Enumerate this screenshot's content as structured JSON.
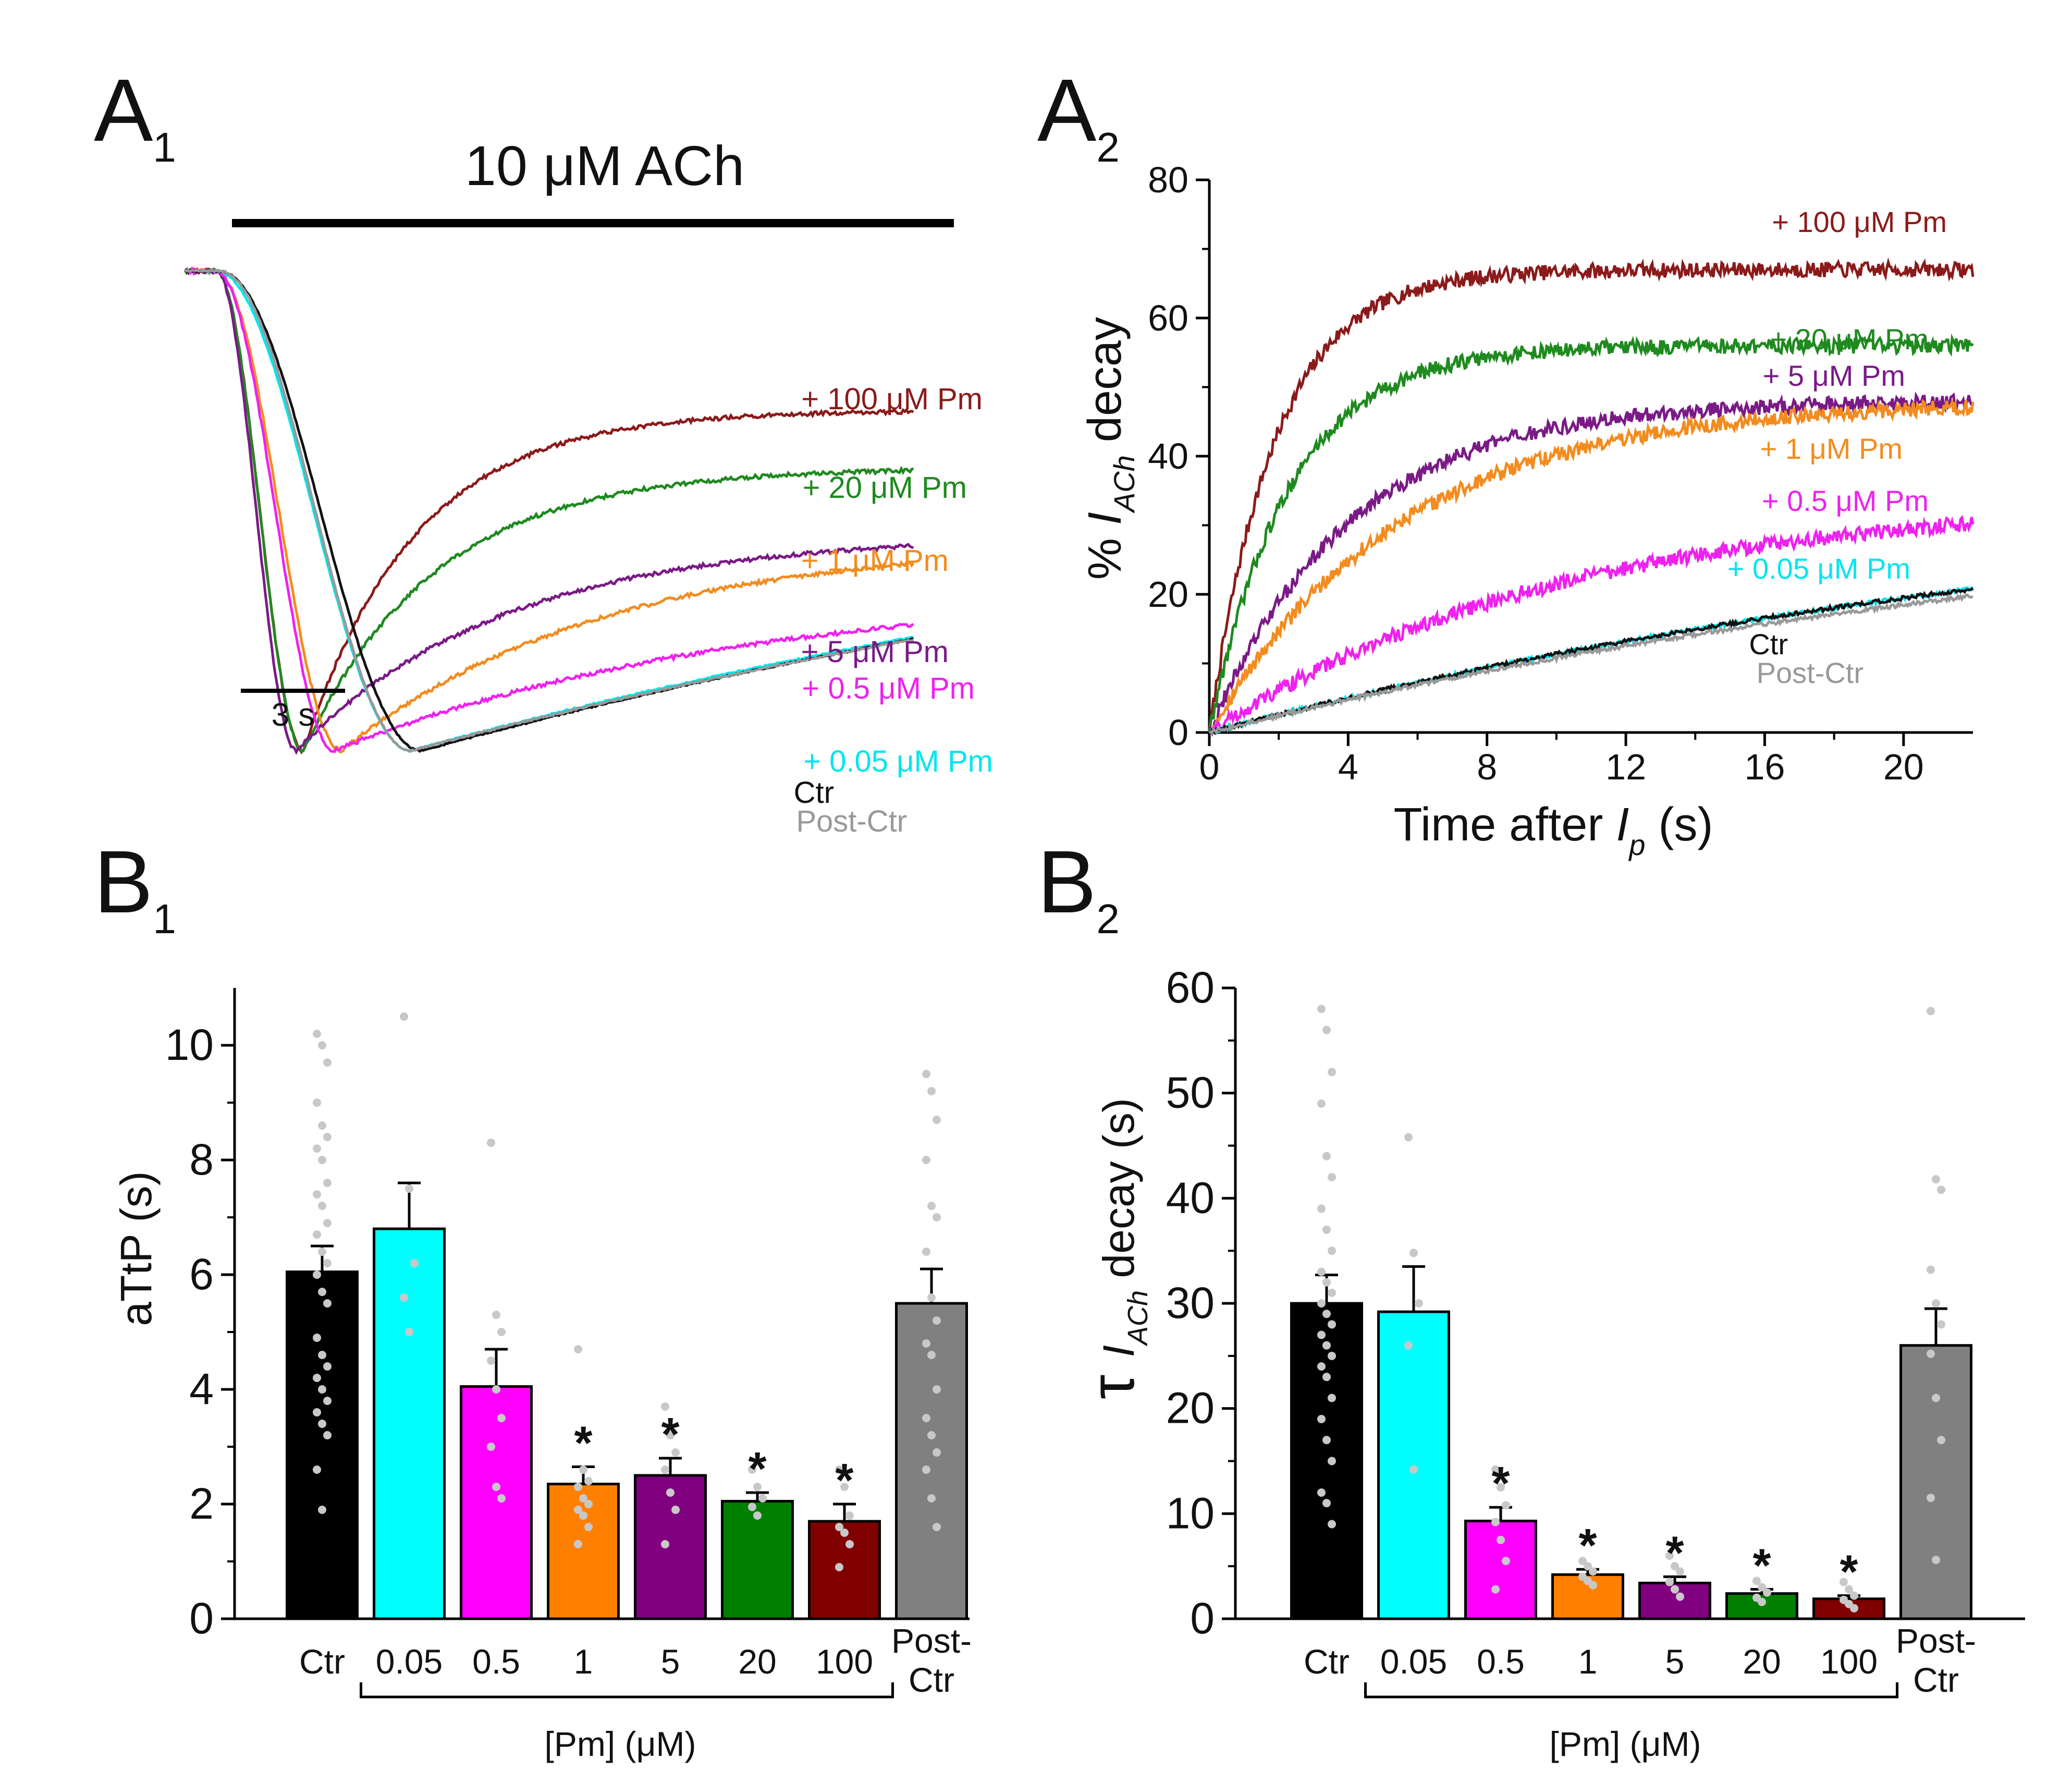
{
  "panels": {
    "a1": {
      "letter": "A",
      "sub": "1"
    },
    "a2": {
      "letter": "A",
      "sub": "2"
    },
    "b1": {
      "letter": "B",
      "sub": "1"
    },
    "b2": {
      "letter": "B",
      "sub": "2"
    }
  },
  "chart_data": [
    {
      "id": "A1",
      "type": "line",
      "title": "10 μM ACh",
      "scale_bar_label": "3 s",
      "series": [
        {
          "name": "+ 100 μM Pm",
          "color": "#8b1a1a",
          "onset": 0.9,
          "ttp": 3.4,
          "tau": 3.2,
          "ss": 0.71
        },
        {
          "name": "+ 20 μM Pm",
          "color": "#1f8a1f",
          "onset": 0.9,
          "ttp": 3.4,
          "tau": 3.8,
          "ss": 0.59
        },
        {
          "name": "+ 1 μM Pm",
          "color": "#f28c1f",
          "onset": 0.9,
          "ttp": 4.5,
          "tau": 7.5,
          "ss": 0.44
        },
        {
          "name": "+ 5 μM Pm",
          "color": "#7a1a86",
          "onset": 0.9,
          "ttp": 3.2,
          "tau": 6.0,
          "ss": 0.45
        },
        {
          "name": "+ 0.5 μM Pm",
          "color": "#ee22ee",
          "onset": 0.9,
          "ttp": 4.3,
          "tau": 12.0,
          "ss": 0.35
        },
        {
          "name": "+ 0.05 μM Pm",
          "color": "#00e5ee",
          "onset": 0.9,
          "ttp": 6.5,
          "tau": 35.0,
          "ss": 0.7
        },
        {
          "name": "Ctr",
          "color": "#111111",
          "onset": 1.0,
          "ttp": 6.8,
          "tau": 35.0,
          "ss": 0.7
        },
        {
          "name": "Post-Ctr",
          "color": "#999999",
          "onset": 1.0,
          "ttp": 6.5,
          "tau": 36.0,
          "ss": 0.7
        }
      ]
    },
    {
      "id": "A2",
      "type": "line",
      "xlabel": "Time after ",
      "xlabel_italic": "I",
      "xlabel_sub": "p",
      "xlabel_unit": " (s)",
      "ylabel_prefix": "% ",
      "ylabel_italic": "I",
      "ylabel_sub": "ACh",
      "ylabel_suffix": " decay",
      "xlim": [
        0,
        22
      ],
      "ylim": [
        0,
        80
      ],
      "xticks": [
        0,
        4,
        8,
        12,
        16,
        20
      ],
      "yticks": [
        0,
        20,
        40,
        60,
        80
      ],
      "series": [
        {
          "name": "+ 100 μM Pm",
          "color": "#8b1a1a",
          "amp": 67,
          "tau": 1.9
        },
        {
          "name": "+ 20 μM Pm",
          "color": "#1f8a1f",
          "amp": 56,
          "tau": 2.3
        },
        {
          "name": "+ 5 μM Pm",
          "color": "#7a1a86",
          "amp": 48,
          "tau": 4.0
        },
        {
          "name": "+ 1 μM Pm",
          "color": "#f28c1f",
          "amp": 48,
          "tau": 5.5
        },
        {
          "name": "+ 0.5 μM Pm",
          "color": "#ee22ee",
          "amp": 34,
          "tau": 10.0
        },
        {
          "name": "+ 0.05 μM Pm",
          "color": "#00e5ee",
          "amp": 40,
          "tau": 30.0
        },
        {
          "name": "Ctr",
          "color": "#111111",
          "amp": 40,
          "tau": 30.0
        },
        {
          "name": "Post-Ctr",
          "color": "#999999",
          "amp": 38,
          "tau": 30.0
        }
      ]
    },
    {
      "id": "B1",
      "type": "bar",
      "ylabel": "aTtP (s)",
      "ylim": [
        0,
        11
      ],
      "yticks": [
        0,
        2,
        4,
        6,
        8,
        10
      ],
      "categories": [
        "Ctr",
        "0.05",
        "0.5",
        "1",
        "5",
        "20",
        "100",
        "Post-"
      ],
      "category_line2": [
        "",
        "",
        "",
        "",
        "",
        "",
        "",
        "Ctr"
      ],
      "group_label": "[Pm] (μM)",
      "values": [
        6.05,
        6.8,
        4.05,
        2.35,
        2.5,
        2.05,
        1.7,
        5.5
      ],
      "sem": [
        0.45,
        0.8,
        0.65,
        0.3,
        0.3,
        0.15,
        0.3,
        0.6
      ],
      "significant": [
        false,
        false,
        false,
        true,
        true,
        true,
        true,
        false
      ],
      "star": "*",
      "colors": [
        "#000000",
        "#00ffff",
        "#ff00ff",
        "#ff8000",
        "#800080",
        "#008000",
        "#800000",
        "#808080"
      ],
      "points": [
        [
          10.2,
          10.0,
          9.7,
          9.0,
          8.6,
          8.4,
          8.2,
          8.0,
          7.6,
          7.4,
          7.2,
          6.9,
          6.7,
          6.4,
          6.2,
          6.0,
          5.7,
          5.5,
          4.9,
          4.6,
          4.4,
          4.2,
          4.0,
          3.8,
          3.6,
          3.4,
          3.2,
          2.6,
          1.9
        ],
        [
          10.5,
          7.5,
          6.2,
          5.6,
          5.0
        ],
        [
          8.3,
          5.3,
          5.0,
          4.5,
          4.0,
          3.5,
          3.0,
          2.3,
          2.1
        ],
        [
          4.7,
          2.6,
          2.4,
          2.3,
          2.1,
          2.0,
          1.9,
          1.8,
          1.6,
          1.3
        ],
        [
          3.7,
          3.2,
          2.9,
          2.6,
          2.2,
          1.9,
          1.3
        ],
        [
          2.6,
          2.3,
          2.1,
          1.95,
          1.8
        ],
        [
          2.6,
          2.3,
          1.8,
          1.6,
          1.5,
          1.3,
          0.9
        ],
        [
          9.5,
          9.2,
          8.7,
          8.0,
          7.2,
          7.0,
          6.4,
          5.6,
          5.2,
          4.8,
          4.6,
          4.0,
          3.5,
          3.2,
          2.9,
          2.6,
          2.1,
          1.6
        ]
      ]
    },
    {
      "id": "B2",
      "type": "bar",
      "ylabel_prefix": "τ ",
      "ylabel_italic": "I",
      "ylabel_sub": "ACh",
      "ylabel_suffix": " decay (s)",
      "ylim": [
        0,
        60
      ],
      "yticks": [
        0,
        10,
        20,
        30,
        40,
        50,
        60
      ],
      "categories": [
        "Ctr",
        "0.05",
        "0.5",
        "1",
        "5",
        "20",
        "100",
        "Post-"
      ],
      "category_line2": [
        "",
        "",
        "",
        "",
        "",
        "",
        "",
        "Ctr"
      ],
      "group_label": "[Pm] (μM)",
      "values": [
        30.0,
        29.2,
        9.3,
        4.2,
        3.4,
        2.4,
        1.9,
        26.0
      ],
      "sem": [
        2.7,
        4.3,
        1.3,
        0.5,
        0.6,
        0.4,
        0.3,
        3.5
      ],
      "significant": [
        false,
        false,
        true,
        true,
        true,
        true,
        true,
        false
      ],
      "star": "*",
      "colors": [
        "#000000",
        "#00ffff",
        "#ff00ff",
        "#ff8000",
        "#800080",
        "#008000",
        "#800000",
        "#808080"
      ],
      "points": [
        [
          58.0,
          56.0,
          52.0,
          49.0,
          44.0,
          42.0,
          39.0,
          37.0,
          35.0,
          33.0,
          32.0,
          31.0,
          30.0,
          29.0,
          28.0,
          27.0,
          26.0,
          25.0,
          24.0,
          23.0,
          21.0,
          19.0,
          17.0,
          15.0,
          12.0,
          11.0,
          9.0
        ],
        [
          45.8,
          34.8,
          30.0,
          26.0,
          14.2
        ],
        [
          14.2,
          12.5,
          10.8,
          9.2,
          7.5,
          5.5,
          2.8
        ],
        [
          5.5,
          5.0,
          4.5,
          4.0,
          3.6,
          3.2
        ],
        [
          6.0,
          5.0,
          4.5,
          3.5,
          2.8,
          2.1
        ],
        [
          3.6,
          3.0,
          2.5,
          2.0,
          1.6
        ],
        [
          3.5,
          2.8,
          2.2,
          1.8,
          1.4,
          1.0
        ],
        [
          57.8,
          41.8,
          40.8,
          33.2,
          30.0,
          28.0,
          25.2,
          21.0,
          17.0,
          11.5,
          5.6
        ]
      ]
    }
  ]
}
